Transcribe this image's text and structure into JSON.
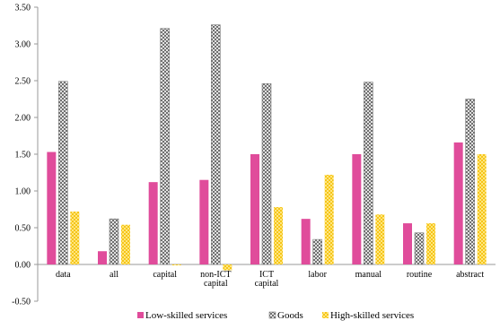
{
  "chart_data": {
    "type": "bar",
    "categories": [
      [
        "data"
      ],
      [
        "all"
      ],
      [
        "capital"
      ],
      [
        "non-ICT",
        "capital"
      ],
      [
        "ICT",
        "capital"
      ],
      [
        "labor"
      ],
      [
        "manual"
      ],
      [
        "routine"
      ],
      [
        "abstract"
      ]
    ],
    "series": [
      {
        "name": "Low-skilled services",
        "values": [
          1.53,
          0.18,
          1.12,
          1.15,
          1.5,
          0.62,
          1.5,
          0.56,
          1.66
        ],
        "color": "#e04c9b",
        "pattern": "solid"
      },
      {
        "name": "Goods",
        "values": [
          2.49,
          0.62,
          3.21,
          3.26,
          2.46,
          0.34,
          2.48,
          0.43,
          2.25
        ],
        "color": "#666666",
        "pattern": "crosshatch"
      },
      {
        "name": "High-skilled services",
        "values": [
          0.72,
          0.54,
          -0.01,
          -0.08,
          0.78,
          1.22,
          0.68,
          0.56,
          1.5
        ],
        "color": "#f5c518",
        "pattern": "checker"
      }
    ],
    "y_ticks": [
      "3.50",
      "3.00",
      "2.50",
      "2.00",
      "1.50",
      "1.00",
      "0.50",
      "0.00",
      "-0.50"
    ],
    "ylim": [
      -0.5,
      3.5
    ],
    "grid": false,
    "legend_position": "bottom"
  }
}
